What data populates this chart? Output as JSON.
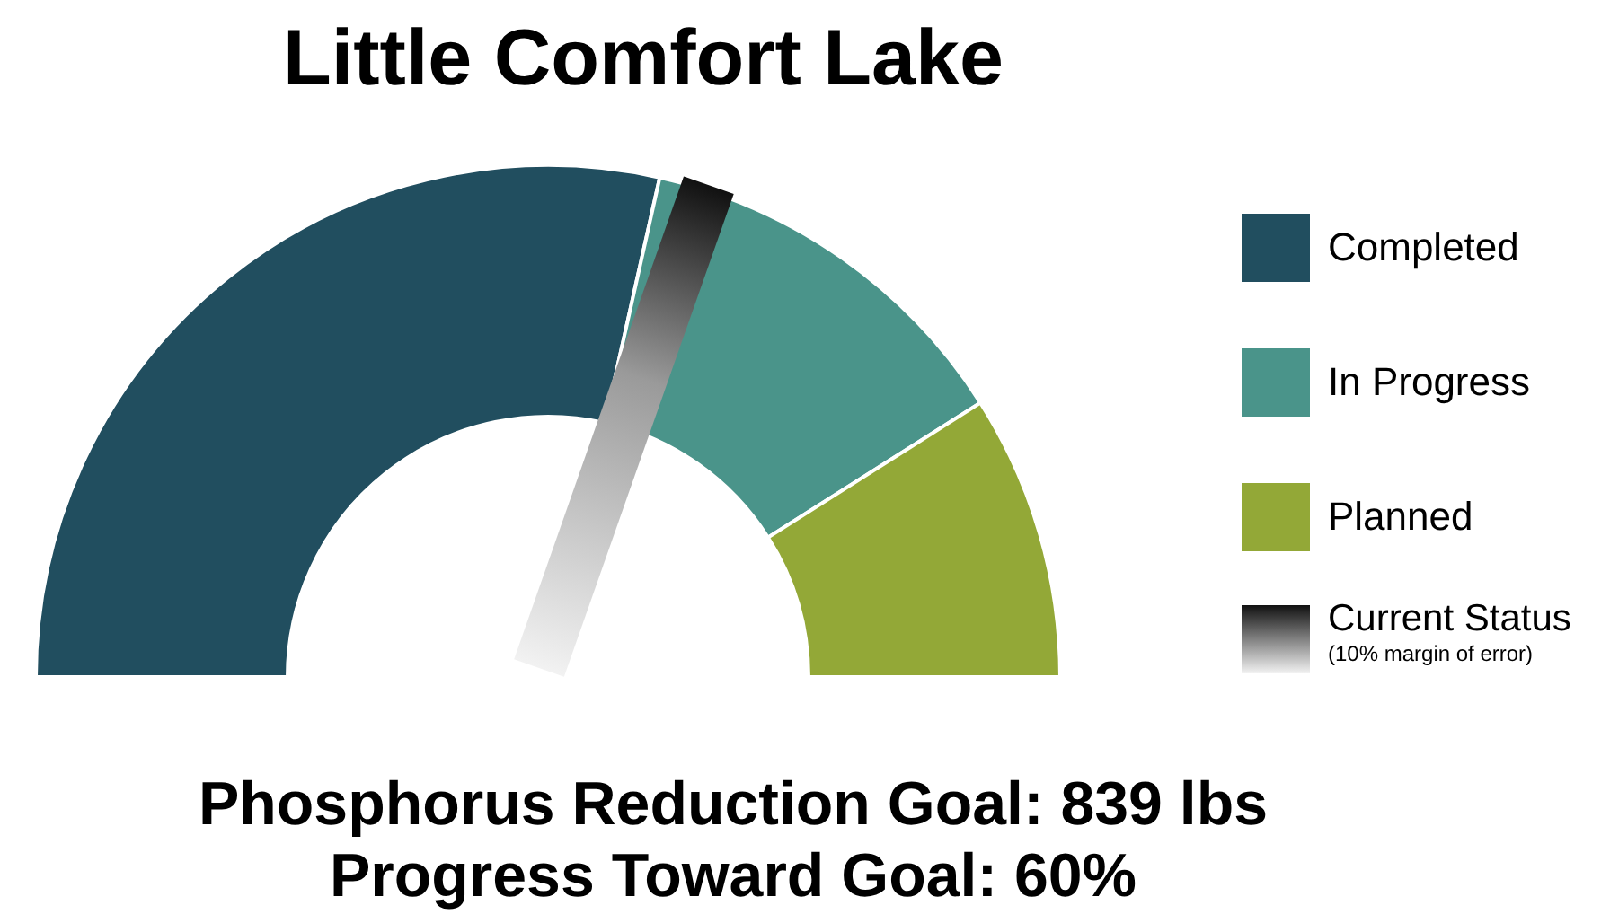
{
  "chart_data": {
    "type": "donut",
    "title": "Little Comfort Lake",
    "categories": [
      "Completed",
      "In Progress",
      "Planned"
    ],
    "values": [
      57,
      25,
      18
    ],
    "colors": [
      "#214e5f",
      "#4a948a",
      "#93a837"
    ],
    "needle": "In Progress",
    "legend": "right",
    "annotations": [
      "Current Status",
      "(10% margin of error)",
      "Phosphorus Reduction Goal: 839 lbs",
      "Progress Toward Goal: 60%"
    ]
  }
}
